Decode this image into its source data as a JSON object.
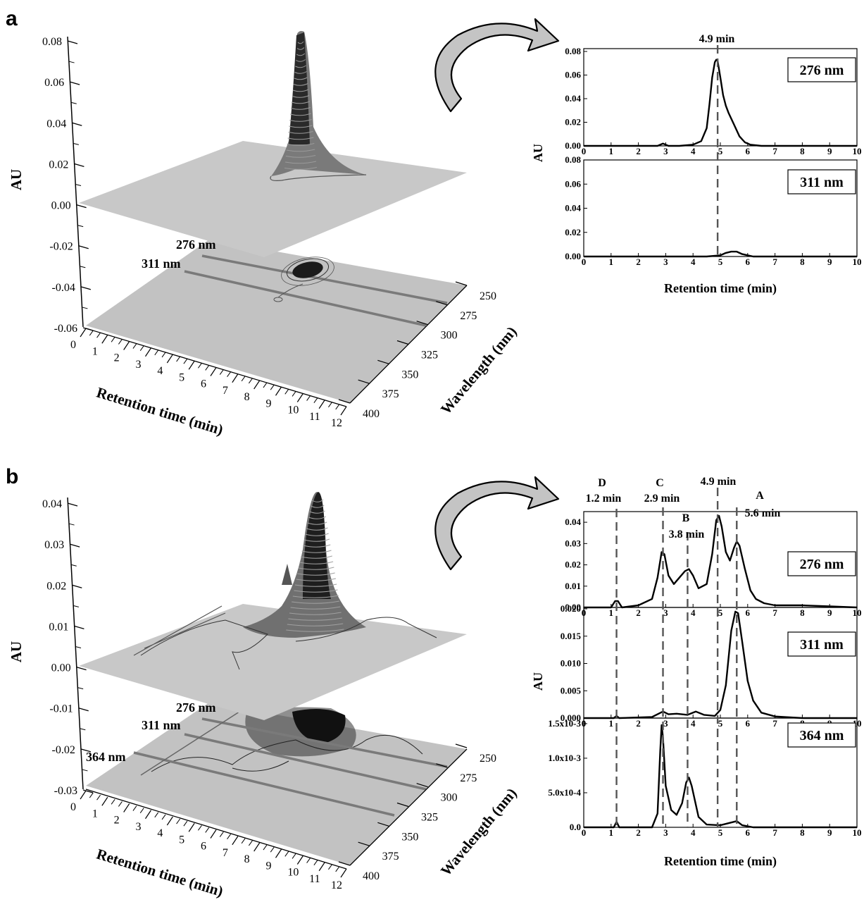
{
  "panels": {
    "a": "a",
    "b": "b"
  },
  "surface_a": {
    "z_ticks": [
      "0.08",
      "0.06",
      "0.04",
      "0.02",
      "0.00",
      "-0.02",
      "-0.04",
      "-0.06"
    ],
    "z_label": "AU",
    "x_ticks": [
      "0",
      "1",
      "2",
      "3",
      "4",
      "5",
      "6",
      "7",
      "8",
      "9",
      "10",
      "11",
      "12"
    ],
    "x_label": "Retention time (min)",
    "y_ticks": [
      "250",
      "275",
      "300",
      "325",
      "350",
      "375",
      "400"
    ],
    "y_label": "Wavelength (nm)",
    "lines": [
      "276 nm",
      "311 nm"
    ]
  },
  "surface_b": {
    "z_ticks": [
      "0.04",
      "0.03",
      "0.02",
      "0.01",
      "0.00",
      "-0.01",
      "-0.02",
      "-0.03"
    ],
    "z_label": "AU",
    "x_ticks": [
      "0",
      "1",
      "2",
      "3",
      "4",
      "5",
      "6",
      "7",
      "8",
      "9",
      "10",
      "11",
      "12"
    ],
    "x_label": "Retention time (min)",
    "y_ticks": [
      "250",
      "275",
      "300",
      "325",
      "350",
      "375",
      "400"
    ],
    "y_label": "Wavelength (nm)",
    "lines": [
      "276 nm",
      "311 nm",
      "364 nm"
    ]
  },
  "chart_data": [
    {
      "type": "line",
      "panel": "a",
      "xlabel": "Retention time (min)",
      "ylabel": "AU",
      "xlim": [
        0,
        10
      ],
      "x_ticks": [
        "0",
        "1",
        "2",
        "3",
        "4",
        "5",
        "6",
        "7",
        "8",
        "9",
        "10"
      ],
      "vlines": [
        {
          "x": 4.9,
          "label": "4.9 min"
        }
      ],
      "subplots": [
        {
          "name": "276 nm",
          "ylim": [
            0,
            0.08
          ],
          "y_ticks": [
            "0.00",
            "0.02",
            "0.04",
            "0.06",
            "0.08"
          ],
          "x": [
            0,
            2.7,
            2.9,
            3.1,
            3.5,
            4.0,
            4.3,
            4.5,
            4.6,
            4.7,
            4.8,
            4.85,
            4.9,
            5.0,
            5.1,
            5.2,
            5.3,
            5.5,
            5.7,
            5.9,
            6.1,
            6.5,
            7,
            8,
            9,
            10
          ],
          "y": [
            0,
            0,
            0.002,
            0,
            0,
            0.001,
            0.004,
            0.015,
            0.035,
            0.058,
            0.071,
            0.073,
            0.072,
            0.058,
            0.043,
            0.034,
            0.028,
            0.018,
            0.008,
            0.003,
            0.001,
            0,
            0,
            0,
            0,
            0
          ]
        },
        {
          "name": "311 nm",
          "ylim": [
            0,
            0.08
          ],
          "y_ticks": [
            "0.00",
            "0.02",
            "0.04",
            "0.06",
            "0.08"
          ],
          "x": [
            0,
            4.5,
            5.0,
            5.2,
            5.4,
            5.6,
            5.8,
            6.0,
            6.2,
            7,
            8,
            9,
            10
          ],
          "y": [
            0,
            0,
            0.001,
            0.003,
            0.004,
            0.004,
            0.002,
            0.001,
            0,
            0,
            0,
            0,
            0
          ]
        }
      ]
    },
    {
      "type": "line",
      "panel": "b",
      "xlabel": "Retention time (min)",
      "ylabel": "AU",
      "xlim": [
        0,
        10
      ],
      "x_ticks": [
        "0",
        "1",
        "2",
        "3",
        "4",
        "5",
        "6",
        "7",
        "8",
        "9",
        "10"
      ],
      "vlines": [
        {
          "x": 1.2,
          "label": "1.2 min",
          "letter": "D"
        },
        {
          "x": 2.9,
          "label": "2.9 min",
          "letter": "C"
        },
        {
          "x": 3.8,
          "label": "3.8 min",
          "letter": "B"
        },
        {
          "x": 4.9,
          "label": "4.9 min",
          "letter": ""
        },
        {
          "x": 5.6,
          "label": "5.6 min",
          "letter": "A"
        }
      ],
      "subplots": [
        {
          "name": "276 nm",
          "ylim": [
            0,
            0.045
          ],
          "y_ticks": [
            "0.00",
            "0.01",
            "0.02",
            "0.03",
            "0.04"
          ],
          "x": [
            0,
            1.0,
            1.15,
            1.25,
            1.4,
            2.0,
            2.5,
            2.7,
            2.85,
            2.95,
            3.1,
            3.3,
            3.5,
            3.7,
            3.85,
            4.0,
            4.2,
            4.5,
            4.7,
            4.85,
            4.95,
            5.05,
            5.2,
            5.35,
            5.5,
            5.6,
            5.7,
            5.9,
            6.1,
            6.3,
            6.6,
            7.0,
            8.0,
            9.0,
            10
          ],
          "y": [
            0,
            0,
            0.003,
            0.003,
            0,
            0.001,
            0.004,
            0.014,
            0.026,
            0.025,
            0.015,
            0.011,
            0.014,
            0.017,
            0.018,
            0.015,
            0.009,
            0.011,
            0.025,
            0.041,
            0.043,
            0.038,
            0.026,
            0.022,
            0.028,
            0.031,
            0.029,
            0.018,
            0.008,
            0.004,
            0.002,
            0.001,
            0.001,
            0.0005,
            0
          ]
        },
        {
          "name": "311 nm",
          "ylim": [
            0,
            0.02
          ],
          "y_ticks": [
            "0.000",
            "0.005",
            "0.010",
            "0.015",
            "0.020"
          ],
          "x": [
            0,
            1.1,
            1.2,
            1.3,
            2.5,
            2.9,
            3.1,
            3.4,
            3.8,
            4.1,
            4.4,
            4.8,
            5.0,
            5.2,
            5.4,
            5.55,
            5.65,
            5.8,
            6.0,
            6.2,
            6.5,
            7.0,
            8,
            9,
            10
          ],
          "y": [
            0,
            0,
            0.0004,
            0,
            0.0002,
            0.0012,
            0.0007,
            0.0008,
            0.0006,
            0.0012,
            0.0006,
            0.0004,
            0.0015,
            0.006,
            0.016,
            0.0195,
            0.0192,
            0.014,
            0.0068,
            0.0032,
            0.001,
            0.0003,
            0,
            0,
            0
          ]
        },
        {
          "name": "364 nm",
          "ylim": [
            0,
            0.00155
          ],
          "y_ticks": [
            "0.0",
            "5.0x10-4",
            "1.0x10-3",
            "1.5x10-3"
          ],
          "x": [
            0,
            1.1,
            1.2,
            1.3,
            2.5,
            2.7,
            2.8,
            2.85,
            2.9,
            3.0,
            3.2,
            3.4,
            3.6,
            3.75,
            3.85,
            3.95,
            4.2,
            4.5,
            5.0,
            5.5,
            5.6,
            5.8,
            6.2,
            7,
            8,
            9,
            10
          ],
          "y": [
            0,
            0,
            8e-05,
            0,
            0,
            0.0002,
            0.0011,
            0.00148,
            0.0013,
            0.0006,
            0.00025,
            0.00018,
            0.00035,
            0.00065,
            0.00072,
            0.0006,
            0.00015,
            4e-05,
            3e-05,
            8e-05,
            9e-05,
            3e-05,
            0,
            0,
            0,
            0,
            0
          ]
        }
      ]
    }
  ]
}
